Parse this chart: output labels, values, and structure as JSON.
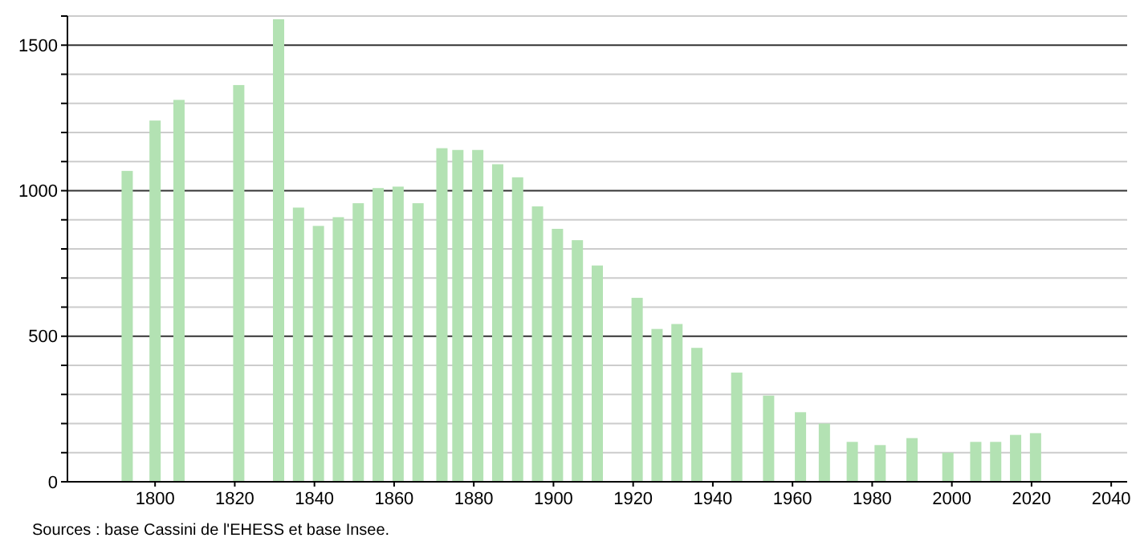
{
  "chart_data": {
    "type": "bar",
    "x": [
      1793,
      1800,
      1806,
      1821,
      1831,
      1836,
      1841,
      1846,
      1851,
      1856,
      1861,
      1866,
      1872,
      1876,
      1881,
      1886,
      1891,
      1896,
      1901,
      1906,
      1911,
      1921,
      1926,
      1931,
      1936,
      1946,
      1954,
      1962,
      1968,
      1975,
      1982,
      1990,
      1999,
      2006,
      2011,
      2016,
      2021
    ],
    "values": [
      1068,
      1241,
      1312,
      1363,
      1589,
      942,
      879,
      909,
      957,
      1009,
      1014,
      957,
      1146,
      1140,
      1140,
      1091,
      1046,
      946,
      869,
      830,
      743,
      632,
      525,
      542,
      460,
      375,
      296,
      239,
      200,
      137,
      126,
      150,
      100,
      137,
      137,
      161,
      167
    ],
    "color": "#b3e2b3",
    "xlim": [
      1778,
      2044
    ],
    "xticks": [
      1800,
      1820,
      1840,
      1860,
      1880,
      1900,
      1920,
      1940,
      1960,
      1980,
      2000,
      2020,
      2040
    ],
    "ylim": [
      0,
      1600
    ],
    "yticks": [
      0,
      {
        "value": 100,
        "label": null
      },
      {
        "value": 200,
        "label": null
      },
      {
        "value": 300,
        "label": null
      },
      {
        "value": 400,
        "label": null
      },
      500,
      {
        "value": 600,
        "label": null
      },
      {
        "value": 700,
        "label": null
      },
      {
        "value": 800,
        "label": null
      },
      {
        "value": 900,
        "label": null
      },
      1000,
      {
        "value": 1100,
        "label": null
      },
      {
        "value": 1200,
        "label": null
      },
      {
        "value": 1300,
        "label": null
      },
      {
        "value": 1400,
        "label": null
      },
      1500,
      {
        "value": 1600,
        "label": null
      }
    ],
    "grid": true,
    "annotations": [
      "Sources : base Cassini de l'EHESS et base Insee."
    ]
  }
}
